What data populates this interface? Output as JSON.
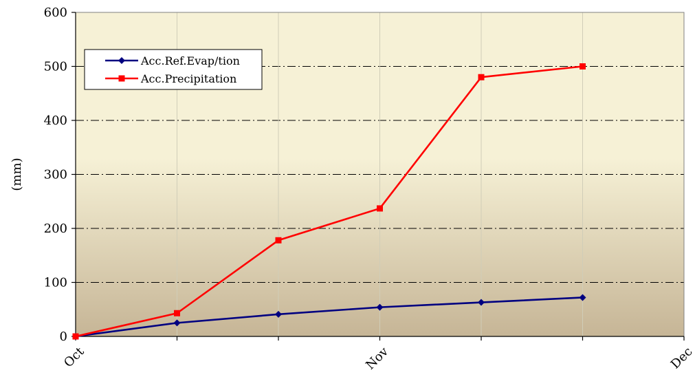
{
  "chart_data": {
    "type": "line",
    "title": "",
    "xlabel": "",
    "ylabel": "(mm)",
    "ylim": [
      0,
      600
    ],
    "yticks": [
      0,
      100,
      200,
      300,
      400,
      500,
      600
    ],
    "xlim": [
      0,
      6
    ],
    "xtick_labels": [
      {
        "x": 0,
        "label": "Oct"
      },
      {
        "x": 3,
        "label": "Nov"
      },
      {
        "x": 6,
        "label": "Dec"
      }
    ],
    "grid": true,
    "legend_position": "top-left",
    "x": [
      0,
      1,
      2,
      3,
      4,
      5
    ],
    "series": [
      {
        "name": "Acc.Ref.Evap/tion",
        "color": "#000080",
        "marker": "diamond",
        "values": [
          0,
          25,
          41,
          54,
          63,
          72
        ]
      },
      {
        "name": "Acc.Precipitation",
        "color": "#ff0000",
        "marker": "square",
        "values": [
          0,
          43,
          178,
          237,
          480,
          500
        ]
      }
    ],
    "colors": {
      "plot_bg_top": "#f6f1d6",
      "plot_bg_bottom": "#c6b596",
      "grid": "#000000"
    }
  }
}
